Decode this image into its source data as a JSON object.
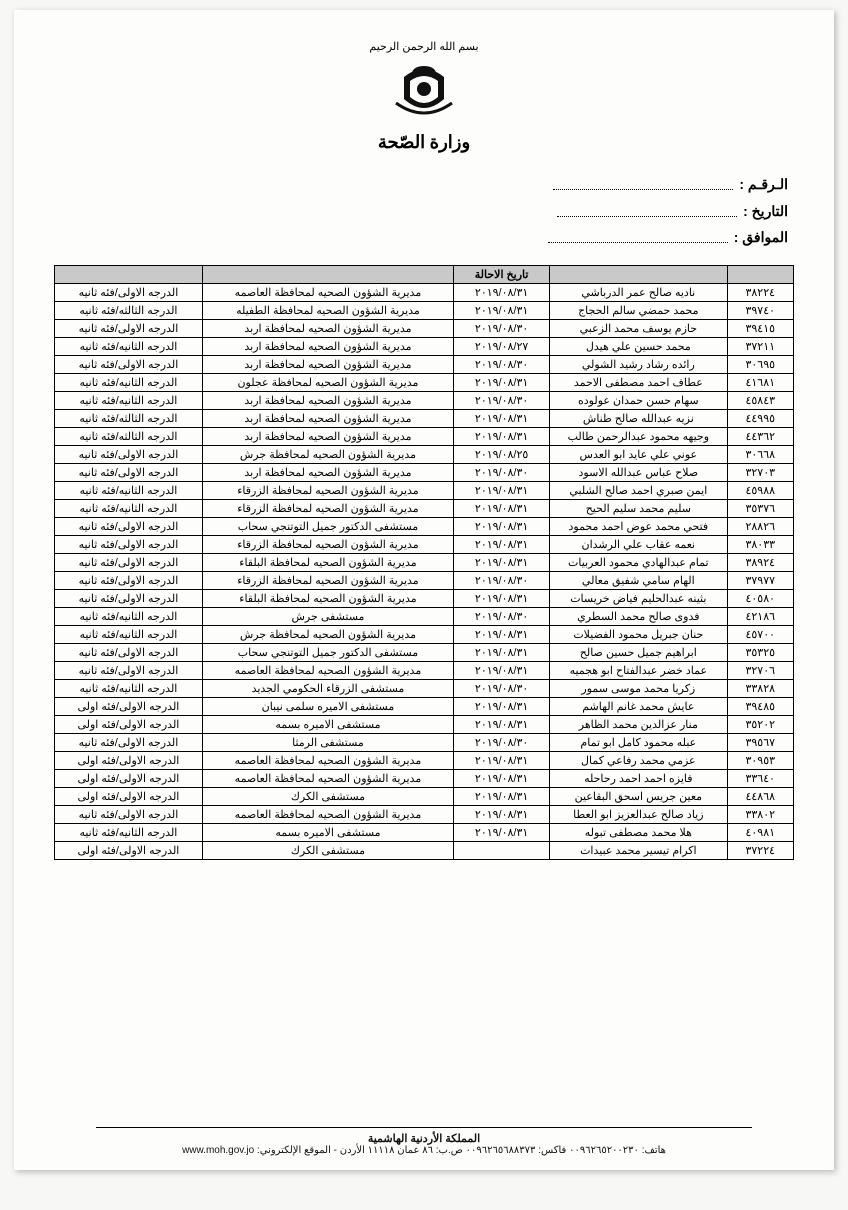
{
  "header": {
    "bismillah": "بسم الله الرحمن الرحيم",
    "ministry": "وزارة الصّحة"
  },
  "meta": {
    "number_label": "الـرقـم :",
    "date_label": "التاريخ :",
    "hijri_label": "الموافق :"
  },
  "table": {
    "columns": [
      "",
      "",
      "تاريخ الاحالة",
      "",
      ""
    ],
    "col_widths": [
      "9%",
      "24%",
      "13%",
      "34%",
      "20%"
    ],
    "rows": [
      [
        "٣٨٢٢٤",
        "ناديه صالح عمر الدرباشي",
        "٢٠١٩/٠٨/٣١",
        "مديرية الشؤون الصحيه لمحافظة العاصمه",
        "الدرجه الاولى/فئه ثانيه"
      ],
      [
        "٣٩٧٤٠",
        "محمد حمضي سالم الحجاج",
        "٢٠١٩/٠٨/٣١",
        "مديرية الشؤون الصحيه لمحافظة الطفيله",
        "الدرجه الثالثه/فئه ثانيه"
      ],
      [
        "٣٩٤١٥",
        "حازم يوسف محمد الزعبي",
        "٢٠١٩/٠٨/٣٠",
        "مديرية الشؤون الصحيه لمحافظة اربد",
        "الدرجه الاولى/فئه ثانيه"
      ],
      [
        "٣٧٢١١",
        "محمد حسين علي هيدل",
        "٢٠١٩/٠٨/٢٧",
        "مديرية الشؤون الصحيه لمحافظة اربد",
        "الدرجه الثانيه/فئه ثانيه"
      ],
      [
        "٣٠٦٩٥",
        "رائده رشاد رشيد الشولي",
        "٢٠١٩/٠٨/٣٠",
        "مديرية الشؤون الصحيه لمحافظة اربد",
        "الدرجه الاولى/فئه ثانيه"
      ],
      [
        "٤١٦٨١",
        "عطاف احمد مصطفى الاحمد",
        "٢٠١٩/٠٨/٣١",
        "مديرية الشؤون الصحيه لمحافظة عجلون",
        "الدرجه الثانيه/فئه ثانيه"
      ],
      [
        "٤٥٨٤٣",
        "سهام حسن حمدان عولوده",
        "٢٠١٩/٠٨/٣٠",
        "مديرية الشؤون الصحيه لمحافظة اربد",
        "الدرجه الثانيه/فئه ثانيه"
      ],
      [
        "٤٤٩٩٥",
        "نزيه عبدالله صالح طناش",
        "٢٠١٩/٠٨/٣١",
        "مديرية الشؤون الصحيه لمحافظة اربد",
        "الدرجه الثالثه/فئه ثانيه"
      ],
      [
        "٤٤٣٦٢",
        "وجيهه محمود عبدالرحمن طالب",
        "٢٠١٩/٠٨/٣١",
        "مديرية الشؤون الصحيه لمحافظة اربد",
        "الدرجه الثالثه/فئه ثانيه"
      ],
      [
        "٣٠٦٦٨",
        "عوني علي عايد ابو العدس",
        "٢٠١٩/٠٨/٢٥",
        "مديرية الشؤون الصحيه لمحافظة جرش",
        "الدرجه الاولى/فئه ثانيه"
      ],
      [
        "٣٢٧٠٣",
        "صلاح عباس عبدالله الاسود",
        "٢٠١٩/٠٨/٣٠",
        "مديرية الشؤون الصحيه لمحافظة اربد",
        "الدرجه الاولى/فئه ثانيه"
      ],
      [
        "٤٥٩٨٨",
        "ايمن صبري احمد صالح الشلبي",
        "٢٠١٩/٠٨/٣١",
        "مديرية الشؤون الصحيه لمحافظة الزرقاء",
        "الدرجه الثانيه/فئه ثانيه"
      ],
      [
        "٣٥٣٧٦",
        "سليم محمد سليم الحيح",
        "٢٠١٩/٠٨/٣١",
        "مديرية الشؤون الصحيه لمحافظة الزرقاء",
        "الدرجه الثانيه/فئه ثانيه"
      ],
      [
        "٢٨٨٢٦",
        "فتحي محمد عوض احمد محمود",
        "٢٠١٩/٠٨/٣١",
        "مستشفى الدكتور جميل التوتنجي سحاب",
        "الدرجه الاولى/فئه ثانيه"
      ],
      [
        "٣٨٠٣٣",
        "نعمه عقاب علي الرشدان",
        "٢٠١٩/٠٨/٣١",
        "مديرية الشؤون الصحيه لمحافظة الزرقاء",
        "الدرجه الاولى/فئه ثانيه"
      ],
      [
        "٣٨٩٢٤",
        "تمام عبدالهادي محمود العربيات",
        "٢٠١٩/٠٨/٣١",
        "مديرية الشؤون الصحيه لمحافظة البلقاء",
        "الدرجه الاولى/فئه ثانيه"
      ],
      [
        "٣٧٩٧٧",
        "الهام سامي شفيق معالي",
        "٢٠١٩/٠٨/٣٠",
        "مديرية الشؤون الصحيه لمحافظة الزرقاء",
        "الدرجه الاولى/فئه ثانيه"
      ],
      [
        "٤٠٥٨٠",
        "بثينه عبدالحليم فياض خريسات",
        "٢٠١٩/٠٨/٣١",
        "مديرية الشؤون الصحيه لمحافظة البلقاء",
        "الدرجه الاولى/فئه ثانيه"
      ],
      [
        "٤٢١٨٦",
        "فدوى صالح محمد السطري",
        "٢٠١٩/٠٨/٣٠",
        "مستشفى جرش",
        "الدرجه الثانيه/فئه ثانيه"
      ],
      [
        "٤٥٧٠٠",
        "حنان جبريل محمود الفضيلات",
        "٢٠١٩/٠٨/٣١",
        "مديرية الشؤون الصحيه لمحافظة جرش",
        "الدرجه الثانيه/فئه ثانيه"
      ],
      [
        "٣٥٣٢٥",
        "ابراهيم جميل حسين صالح",
        "٢٠١٩/٠٨/٣١",
        "مستشفى الدكتور جميل التوتنجي سحاب",
        "الدرجه الاولى/فئه ثانيه"
      ],
      [
        "٣٢٧٠٦",
        "عماد خضر عبدالفتاح ابو هجميه",
        "٢٠١٩/٠٨/٣١",
        "مديرية الشؤون الصحيه لمحافظة العاصمه",
        "الدرجه الاولى/فئه ثانيه"
      ],
      [
        "٣٣٨٢٨",
        "زكريا محمد موسى سمور",
        "٢٠١٩/٠٨/٣٠",
        "مستشفى الزرقاء الحكومي الجديد",
        "الدرجه الثانيه/فئه ثانيه"
      ],
      [
        "٣٩٤٨٥",
        "عايش محمد غانم الهاشم",
        "٢٠١٩/٠٨/٣١",
        "مستشفى الاميره سلمى نيبان",
        "الدرجه الاولى/فئه اولى"
      ],
      [
        "٣٥٢٠٢",
        "منار عزالدين محمد الظاهر",
        "٢٠١٩/٠٨/٣١",
        "مستشفى الاميره بسمه",
        "الدرجه الاولى/فئه اولى"
      ],
      [
        "٣٩٥٦٧",
        "عبله محمود كامل ابو تمام",
        "٢٠١٩/٠٨/٣٠",
        "مستشفى الرمثا",
        "الدرجه الاولى/فئه ثانيه"
      ],
      [
        "٣٠٩٥٣",
        "عزمي محمد رفاعي كمال",
        "٢٠١٩/٠٨/٣١",
        "مديرية الشؤون الصحيه لمحافظة العاصمه",
        "الدرجه الاولى/فئه اولى"
      ],
      [
        "٣٣٦٤٠",
        "فايزه احمد احمد رحاحله",
        "٢٠١٩/٠٨/٣١",
        "مديرية الشؤون الصحيه لمحافظة العاصمه",
        "الدرجه الاولى/فئه اولى"
      ],
      [
        "٤٤٨٦٨",
        "معين جريس اسحق البقاعين",
        "٢٠١٩/٠٨/٣١",
        "مستشفى الكرك",
        "الدرجه الاولى/فئه اولى"
      ],
      [
        "٣٣٨٠٢",
        "زياد صالح عبدالعزيز ابو العطا",
        "٢٠١٩/٠٨/٣١",
        "مديرية الشؤون الصحيه لمحافظة العاصمه",
        "الدرجه الاولى/فئه ثانيه"
      ],
      [
        "٤٠٩٨١",
        "هلا محمد مصطفى تبوله",
        "٢٠١٩/٠٨/٣١",
        "مستشفى الاميره بسمه",
        "الدرجه الثانيه/فئه ثانيه"
      ],
      [
        "٣٧٢٢٤",
        "اكرام تيسير محمد عبيدات",
        "",
        "مستشفى الكرك",
        "الدرجه الاولى/فئه اولى"
      ]
    ]
  },
  "footer": {
    "line": "المملكة الأردنية الهاشمية",
    "contact": "هاتف: ٠٠٩٦٢٦٥٢٠٠٢٣٠  فاكس: ٠٠٩٦٢٦٥٦٨٨٣٧٣  ص.ب: ٨٦ عمان ١١١١٨ الأردن - الموقع الإلكتروني: www.moh.gov.jo"
  }
}
